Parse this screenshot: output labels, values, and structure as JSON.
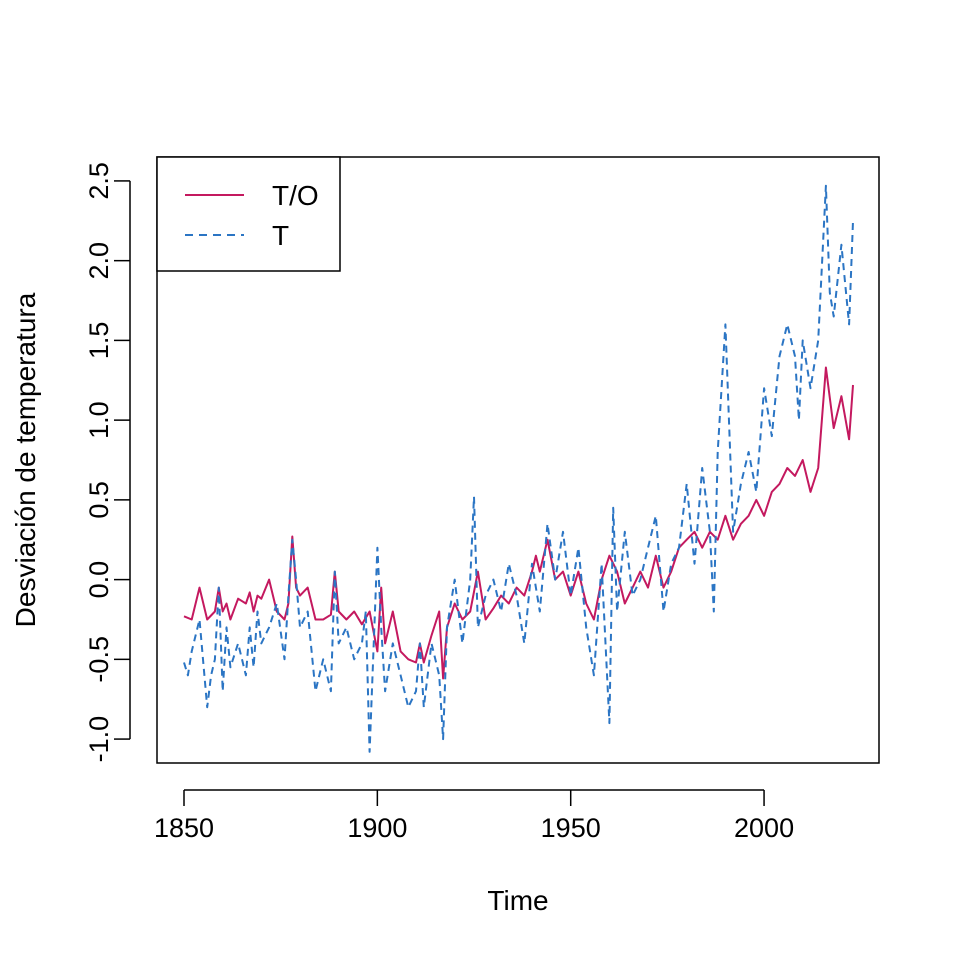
{
  "chart_data": {
    "type": "line",
    "title": "",
    "xlabel": "Time",
    "ylabel": "Desviación de temperatura",
    "xlim": [
      1850,
      2023
    ],
    "ylim": [
      -1.15,
      2.65
    ],
    "x_ticks": [
      1850,
      1900,
      1950,
      2000
    ],
    "x_tick_labels": [
      "1850",
      "1900",
      "1950",
      "2000"
    ],
    "y_ticks": [
      -1.0,
      -0.5,
      0.0,
      0.5,
      1.0,
      1.5,
      2.0,
      2.5
    ],
    "y_tick_labels": [
      "-1.0",
      "-0.5",
      "0.0",
      "0.5",
      "1.0",
      "1.5",
      "2.0",
      "2.5"
    ],
    "grid": false,
    "legend": {
      "position": "top-left",
      "entries": [
        "T/O",
        "T"
      ]
    },
    "series": [
      {
        "name": "T/O",
        "color": "#c4195f",
        "dash": "solid",
        "x": [
          1850,
          1852,
          1854,
          1856,
          1858,
          1859,
          1860,
          1861,
          1862,
          1864,
          1866,
          1867,
          1868,
          1869,
          1870,
          1872,
          1874,
          1876,
          1877,
          1878,
          1879,
          1880,
          1882,
          1884,
          1886,
          1888,
          1889,
          1890,
          1892,
          1894,
          1896,
          1898,
          1900,
          1901,
          1902,
          1904,
          1906,
          1908,
          1910,
          1911,
          1912,
          1914,
          1916,
          1917,
          1918,
          1920,
          1922,
          1924,
          1926,
          1928,
          1930,
          1932,
          1934,
          1936,
          1938,
          1940,
          1941,
          1942,
          1944,
          1946,
          1948,
          1950,
          1952,
          1954,
          1956,
          1958,
          1960,
          1962,
          1964,
          1966,
          1968,
          1970,
          1972,
          1974,
          1976,
          1978,
          1980,
          1982,
          1984,
          1986,
          1988,
          1990,
          1992,
          1994,
          1996,
          1998,
          2000,
          2002,
          2004,
          2006,
          2008,
          2010,
          2012,
          2014,
          2016,
          2018,
          2020,
          2022,
          2023
        ],
        "y": [
          -0.23,
          -0.25,
          -0.05,
          -0.25,
          -0.2,
          -0.05,
          -0.2,
          -0.15,
          -0.25,
          -0.12,
          -0.15,
          -0.08,
          -0.2,
          -0.1,
          -0.12,
          0.0,
          -0.2,
          -0.25,
          -0.15,
          0.27,
          -0.05,
          -0.1,
          -0.05,
          -0.25,
          -0.25,
          -0.22,
          0.05,
          -0.2,
          -0.25,
          -0.2,
          -0.28,
          -0.2,
          -0.45,
          -0.05,
          -0.4,
          -0.2,
          -0.45,
          -0.5,
          -0.52,
          -0.4,
          -0.52,
          -0.35,
          -0.2,
          -0.62,
          -0.3,
          -0.15,
          -0.25,
          -0.2,
          0.05,
          -0.25,
          -0.18,
          -0.1,
          -0.15,
          -0.05,
          -0.1,
          0.05,
          0.15,
          0.05,
          0.25,
          0.0,
          0.05,
          -0.1,
          0.05,
          -0.15,
          -0.25,
          0.0,
          0.15,
          0.05,
          -0.15,
          -0.05,
          0.05,
          -0.05,
          0.15,
          -0.05,
          0.05,
          0.2,
          0.25,
          0.3,
          0.2,
          0.3,
          0.25,
          0.4,
          0.25,
          0.35,
          0.4,
          0.5,
          0.4,
          0.55,
          0.6,
          0.7,
          0.65,
          0.75,
          0.55,
          0.7,
          1.33,
          0.95,
          1.15,
          0.88,
          1.22
        ]
      },
      {
        "name": "T",
        "color": "#2b75c4",
        "dash": "dashed",
        "x": [
          1850,
          1851,
          1852,
          1854,
          1856,
          1857,
          1858,
          1859,
          1860,
          1861,
          1862,
          1864,
          1866,
          1867,
          1868,
          1869,
          1870,
          1872,
          1874,
          1876,
          1877,
          1878,
          1879,
          1880,
          1882,
          1884,
          1886,
          1888,
          1889,
          1890,
          1892,
          1894,
          1896,
          1897,
          1898,
          1900,
          1901,
          1902,
          1904,
          1906,
          1908,
          1910,
          1911,
          1912,
          1914,
          1916,
          1917,
          1918,
          1920,
          1922,
          1924,
          1925,
          1926,
          1928,
          1930,
          1932,
          1934,
          1936,
          1938,
          1940,
          1942,
          1944,
          1946,
          1948,
          1950,
          1952,
          1954,
          1956,
          1958,
          1960,
          1961,
          1962,
          1964,
          1966,
          1968,
          1970,
          1972,
          1974,
          1976,
          1978,
          1980,
          1982,
          1984,
          1986,
          1987,
          1988,
          1990,
          1992,
          1994,
          1996,
          1998,
          2000,
          2002,
          2004,
          2006,
          2008,
          2009,
          2010,
          2012,
          2014,
          2016,
          2017,
          2018,
          2020,
          2022,
          2023
        ],
        "y": [
          -0.52,
          -0.6,
          -0.45,
          -0.25,
          -0.8,
          -0.6,
          -0.5,
          -0.05,
          -0.7,
          -0.3,
          -0.55,
          -0.4,
          -0.6,
          -0.3,
          -0.55,
          -0.2,
          -0.4,
          -0.3,
          -0.15,
          -0.5,
          -0.1,
          0.25,
          0.0,
          -0.3,
          -0.2,
          -0.7,
          -0.5,
          -0.7,
          0.05,
          -0.4,
          -0.3,
          -0.5,
          -0.4,
          -0.2,
          -1.08,
          0.2,
          -0.3,
          -0.7,
          -0.4,
          -0.6,
          -0.8,
          -0.7,
          -0.4,
          -0.8,
          -0.4,
          -0.6,
          -1.0,
          -0.3,
          0.0,
          -0.4,
          0.0,
          0.52,
          -0.3,
          -0.1,
          0.0,
          -0.2,
          0.1,
          -0.1,
          -0.4,
          0.1,
          -0.2,
          0.35,
          0.0,
          0.3,
          -0.1,
          0.2,
          -0.3,
          -0.6,
          0.1,
          -0.9,
          0.45,
          -0.2,
          0.3,
          -0.1,
          0.0,
          0.2,
          0.4,
          -0.2,
          0.1,
          0.2,
          0.6,
          0.1,
          0.7,
          0.3,
          -0.2,
          0.8,
          1.6,
          0.3,
          0.6,
          0.8,
          0.55,
          1.2,
          0.9,
          1.4,
          1.6,
          1.4,
          1.0,
          1.5,
          1.2,
          1.5,
          2.47,
          1.8,
          1.65,
          2.1,
          1.6,
          2.25
        ]
      }
    ]
  }
}
